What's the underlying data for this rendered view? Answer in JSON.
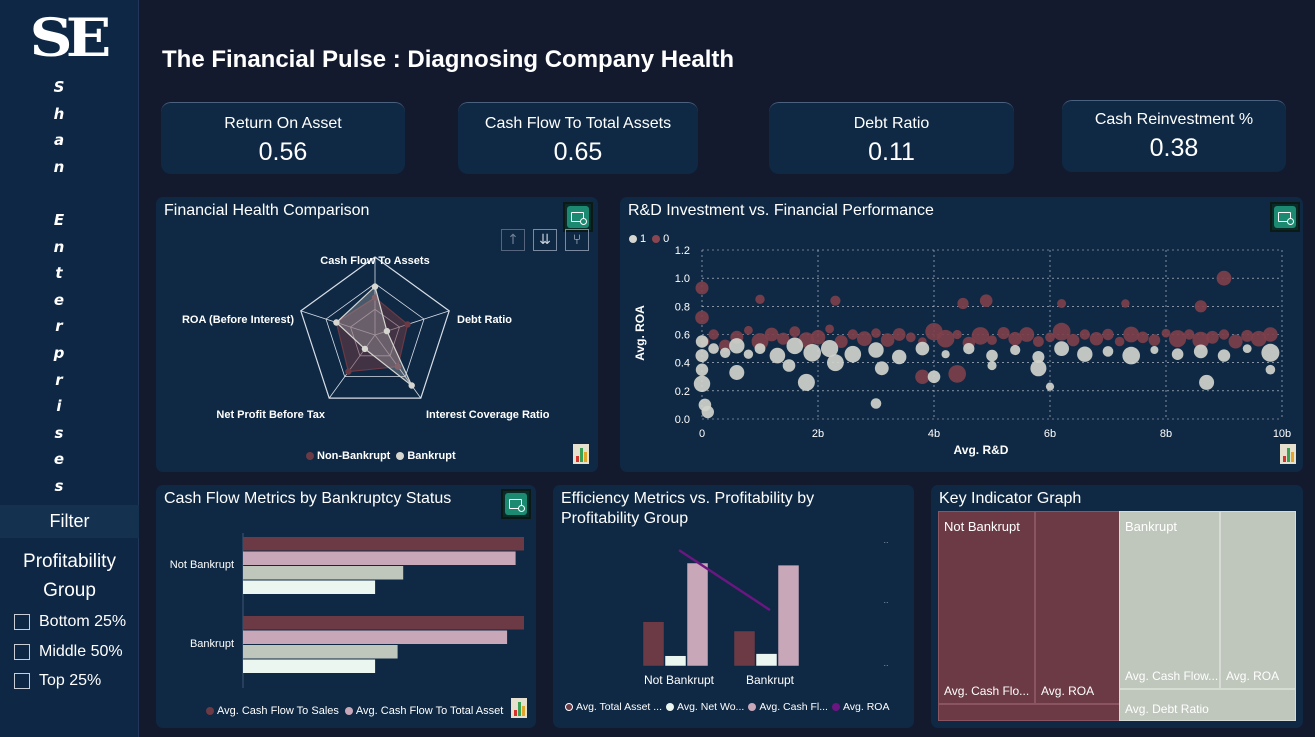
{
  "sidebar": {
    "logo": "SE",
    "brand_letters": [
      "S",
      "h",
      "a",
      "n",
      "",
      "E",
      "n",
      "t",
      "e",
      "r",
      "p",
      "r",
      "i",
      "s",
      "e",
      "s"
    ],
    "filter_label": "Filter",
    "group_title_1": "Profitability",
    "group_title_2": "Group",
    "options": [
      {
        "label": "Bottom 25%",
        "checked": false
      },
      {
        "label": "Middle 50%",
        "checked": false
      },
      {
        "label": "Top 25%",
        "checked": false
      }
    ]
  },
  "header": {
    "title": "The Financial Pulse : Diagnosing Company Health"
  },
  "kpis": [
    {
      "label": "Return On Asset",
      "value": "0.56"
    },
    {
      "label": "Cash Flow To Total Assets",
      "value": "0.65"
    },
    {
      "label": "Debt Ratio",
      "value": "0.11"
    },
    {
      "label": "Cash Reinvestment %",
      "value": "0.38"
    }
  ],
  "radar": {
    "title": "Financial Health Comparison",
    "axes": [
      "Cash Flow To Assets",
      "Debt Ratio",
      "Interest Coverage Ratio",
      "Net Profit Before Tax",
      "ROA (Before Interest)"
    ],
    "legend": [
      "Non-Bankrupt",
      "Bankrupt"
    ],
    "colors": {
      "non_bankrupt": "#6b3a45",
      "bankrupt": "#d6d6d0"
    },
    "nav": [
      "↑",
      "⇊",
      "⑂"
    ]
  },
  "scatter": {
    "title": "R&D Investment vs. Financial Performance",
    "legend": [
      "1",
      "0"
    ],
    "ylabel": "Avg. ROA",
    "xlabel": "Avg. R&D",
    "xticks": [
      "0",
      "2b",
      "4b",
      "6b",
      "8b",
      "10b"
    ],
    "yticks": [
      "0.0",
      "0.2",
      "0.4",
      "0.6",
      "0.8",
      "1.0",
      "1.2"
    ]
  },
  "cashflow": {
    "title": "Cash Flow Metrics by Bankruptcy Status",
    "categories": [
      "Not Bankrupt",
      "Bankrupt"
    ],
    "legend": [
      "Avg. Cash Flow To Sales",
      "Avg. Cash Flow To Total Asset"
    ]
  },
  "efficiency": {
    "title_1": "Efficiency Metrics vs. Profitability by",
    "title_2": "Profitability Group",
    "categories": [
      "Not Bankrupt",
      "Bankrupt"
    ],
    "legend": [
      "Avg. Total Asset ...",
      "Avg. Net Wo...",
      "Avg. Cash Fl...",
      "Avg. ROA"
    ]
  },
  "treemap": {
    "title": "Key Indicator Graph",
    "group_labels": [
      "Not Bankrupt",
      "Bankrupt"
    ],
    "cells": [
      "Avg. Cash Flo...",
      "Avg. ROA",
      "Avg. Cash Flow...",
      "Avg. ROA",
      "Avg. Debt Ratio"
    ]
  },
  "chart_data": [
    {
      "type": "radar",
      "title": "Financial Health Comparison",
      "categories": [
        "Cash Flow To Assets",
        "Debt Ratio",
        "Interest Coverage Ratio",
        "Net Profit Before Tax",
        "ROA (Before Interest)"
      ],
      "series": [
        {
          "name": "Non-Bankrupt",
          "values": [
            0.48,
            0.44,
            0.5,
            0.58,
            0.52
          ]
        },
        {
          "name": "Bankrupt",
          "values": [
            0.62,
            0.16,
            0.8,
            0.22,
            0.52
          ]
        }
      ],
      "ylim": [
        0,
        1
      ]
    },
    {
      "type": "scatter",
      "title": "R&D Investment vs. Financial Performance",
      "xlabel": "Avg. R&D",
      "ylabel": "Avg. ROA",
      "xlim": [
        0,
        10
      ],
      "ylim": [
        0,
        1.2
      ],
      "x_unit": "b",
      "series": [
        {
          "name": "0",
          "points": [
            [
              0.0,
              0.93
            ],
            [
              0.0,
              0.72
            ],
            [
              0.05,
              0.55
            ],
            [
              0.2,
              0.6
            ],
            [
              0.4,
              0.52
            ],
            [
              0.6,
              0.58
            ],
            [
              0.8,
              0.63
            ],
            [
              1.0,
              0.55
            ],
            [
              1.2,
              0.6
            ],
            [
              1.4,
              0.57
            ],
            [
              1.6,
              0.62
            ],
            [
              1.8,
              0.56
            ],
            [
              2.0,
              0.58
            ],
            [
              2.2,
              0.64
            ],
            [
              2.4,
              0.55
            ],
            [
              2.6,
              0.6
            ],
            [
              2.8,
              0.57
            ],
            [
              3.0,
              0.61
            ],
            [
              3.2,
              0.56
            ],
            [
              3.4,
              0.6
            ],
            [
              3.6,
              0.58
            ],
            [
              3.8,
              0.55
            ],
            [
              4.0,
              0.62
            ],
            [
              4.2,
              0.57
            ],
            [
              4.4,
              0.6
            ],
            [
              4.6,
              0.54
            ],
            [
              4.8,
              0.59
            ],
            [
              5.0,
              0.56
            ],
            [
              5.2,
              0.61
            ],
            [
              5.4,
              0.57
            ],
            [
              5.6,
              0.6
            ],
            [
              5.8,
              0.55
            ],
            [
              6.0,
              0.58
            ],
            [
              6.2,
              0.62
            ],
            [
              6.4,
              0.56
            ],
            [
              6.6,
              0.6
            ],
            [
              6.8,
              0.57
            ],
            [
              7.0,
              0.6
            ],
            [
              7.2,
              0.55
            ],
            [
              7.4,
              0.6
            ],
            [
              7.6,
              0.58
            ],
            [
              7.8,
              0.56
            ],
            [
              8.0,
              0.61
            ],
            [
              8.2,
              0.57
            ],
            [
              8.4,
              0.6
            ],
            [
              8.6,
              0.56
            ],
            [
              8.8,
              0.58
            ],
            [
              9.0,
              0.6
            ],
            [
              9.2,
              0.55
            ],
            [
              9.4,
              0.59
            ],
            [
              9.6,
              0.57
            ],
            [
              9.8,
              0.6
            ],
            [
              1.0,
              0.85
            ],
            [
              2.3,
              0.84
            ],
            [
              4.9,
              0.84
            ],
            [
              6.2,
              0.82
            ],
            [
              7.3,
              0.82
            ],
            [
              8.6,
              0.8
            ],
            [
              9.0,
              1.0
            ],
            [
              3.8,
              0.3
            ],
            [
              4.4,
              0.32
            ],
            [
              4.5,
              0.82
            ]
          ]
        },
        {
          "name": "1",
          "points": [
            [
              0.0,
              0.55
            ],
            [
              0.0,
              0.45
            ],
            [
              0.0,
              0.35
            ],
            [
              0.0,
              0.25
            ],
            [
              0.05,
              0.1
            ],
            [
              0.1,
              0.05
            ],
            [
              0.2,
              0.5
            ],
            [
              0.4,
              0.47
            ],
            [
              0.6,
              0.52
            ],
            [
              0.8,
              0.46
            ],
            [
              1.0,
              0.5
            ],
            [
              1.3,
              0.45
            ],
            [
              1.6,
              0.52
            ],
            [
              1.9,
              0.47
            ],
            [
              2.2,
              0.5
            ],
            [
              2.6,
              0.46
            ],
            [
              3.0,
              0.49
            ],
            [
              3.4,
              0.44
            ],
            [
              3.8,
              0.5
            ],
            [
              4.2,
              0.46
            ],
            [
              4.6,
              0.5
            ],
            [
              5.0,
              0.45
            ],
            [
              5.4,
              0.49
            ],
            [
              5.8,
              0.44
            ],
            [
              6.2,
              0.5
            ],
            [
              6.6,
              0.46
            ],
            [
              7.0,
              0.48
            ],
            [
              7.4,
              0.45
            ],
            [
              7.8,
              0.49
            ],
            [
              8.2,
              0.46
            ],
            [
              8.6,
              0.48
            ],
            [
              9.0,
              0.45
            ],
            [
              9.4,
              0.5
            ],
            [
              9.8,
              0.47
            ],
            [
              1.5,
              0.38
            ],
            [
              2.3,
              0.4
            ],
            [
              3.1,
              0.36
            ],
            [
              4.0,
              0.3
            ],
            [
              5.0,
              0.38
            ],
            [
              5.8,
              0.36
            ],
            [
              1.8,
              0.26
            ],
            [
              3.0,
              0.11
            ],
            [
              6.0,
              0.23
            ],
            [
              9.8,
              0.35
            ],
            [
              8.7,
              0.26
            ],
            [
              0.6,
              0.33
            ]
          ]
        }
      ]
    },
    {
      "type": "bar",
      "orientation": "horizontal",
      "title": "Cash Flow Metrics by Bankruptcy Status",
      "categories": [
        "Not Bankrupt",
        "Bankrupt"
      ],
      "series": [
        {
          "name": "Avg. Cash Flow To Sales",
          "values": [
            1.0,
            1.0
          ]
        },
        {
          "name": "Avg. Cash Flow To Total Asset",
          "values": [
            0.97,
            0.94
          ]
        },
        {
          "name": "",
          "values": [
            0.57,
            0.55
          ]
        },
        {
          "name": "",
          "values": [
            0.47,
            0.47
          ]
        }
      ],
      "xlim": [
        0,
        1
      ]
    },
    {
      "type": "bar",
      "title": "Efficiency Metrics vs. Profitability by Profitability Group",
      "categories": [
        "Not Bankrupt",
        "Bankrupt"
      ],
      "series": [
        {
          "name": "Avg. Total Asset ...",
          "values": [
            0.43,
            0.34
          ]
        },
        {
          "name": "Avg. Net Wo...",
          "values": [
            0.1,
            0.12
          ]
        },
        {
          "name": "Avg. Cash Fl...",
          "values": [
            1.0,
            0.98
          ]
        },
        {
          "name": "Avg. ROA",
          "values": [
            0.97,
            0.3
          ],
          "line": true
        }
      ],
      "ylim": [
        0,
        1
      ]
    },
    {
      "type": "treemap",
      "title": "Key Indicator Graph",
      "groups": [
        {
          "name": "Not Bankrupt",
          "items": [
            {
              "name": "Avg. Cash Flo...",
              "value": 1.0
            },
            {
              "name": "Avg. ROA",
              "value": 0.8
            },
            {
              "name": "",
              "value": 0.15
            }
          ]
        },
        {
          "name": "Bankrupt",
          "items": [
            {
              "name": "Avg. Cash Flow...",
              "value": 1.0
            },
            {
              "name": "Avg. ROA",
              "value": 0.6
            },
            {
              "name": "Avg. Debt Ratio",
              "value": 0.25
            }
          ]
        }
      ]
    }
  ],
  "colors": {
    "maroon": "#6b3a45",
    "pink": "#c8a7b9",
    "sage": "#bfc6bb",
    "mint": "#ecf6f1",
    "roa_line": "#6c1682",
    "accent": "#1c8a70"
  }
}
